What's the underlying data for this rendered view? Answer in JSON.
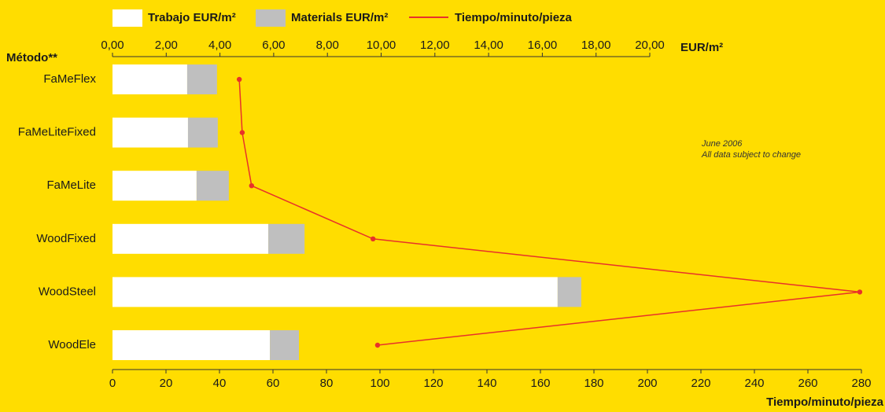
{
  "chart_data": {
    "type": "bar",
    "orientation": "horizontal",
    "stacked": true,
    "y_label": "Método**",
    "x_label": "EUR/m²",
    "x2_label": "Tiempo/minuto/pieza",
    "annotations": [
      "June 2006",
      "All data subject to change"
    ],
    "categories": [
      "FaMeFlex",
      "FaMeLiteFixed",
      "FaMeLite",
      "WoodFixed",
      "WoodSteel",
      "WoodEle"
    ],
    "series": [
      {
        "name": "Trabajo EUR/m²",
        "color": "#ffffff",
        "values": [
          2.78,
          2.81,
          3.13,
          5.8,
          16.57,
          5.86
        ]
      },
      {
        "name": "Materials EUR/m²",
        "color": "#bfbfbf",
        "values": [
          1.11,
          1.11,
          1.2,
          1.35,
          0.88,
          1.08
        ]
      },
      {
        "name": "Tiempo/minuto/pieza",
        "type": "line",
        "axis": "x2",
        "color": "#e8312a",
        "values": [
          47.4,
          48.5,
          52,
          97.4,
          279.4,
          99.1
        ]
      }
    ],
    "xlim": [
      0,
      20
    ],
    "xticks": [
      {
        "value": 0,
        "label": "0,00"
      },
      {
        "value": 2,
        "label": "2,00"
      },
      {
        "value": 4,
        "label": "4,00"
      },
      {
        "value": 6,
        "label": "6,00"
      },
      {
        "value": 8,
        "label": "8,00"
      },
      {
        "value": 10,
        "label": "10,00"
      },
      {
        "value": 12,
        "label": "12,00"
      },
      {
        "value": 14,
        "label": "14,00"
      },
      {
        "value": 16,
        "label": "16,00"
      },
      {
        "value": 18,
        "label": "18,00"
      },
      {
        "value": 20,
        "label": "20,00"
      }
    ],
    "x2lim": [
      0,
      280
    ],
    "x2ticks": [
      0,
      20,
      40,
      60,
      80,
      100,
      120,
      140,
      160,
      180,
      200,
      220,
      240,
      260,
      280
    ],
    "grid": false
  }
}
